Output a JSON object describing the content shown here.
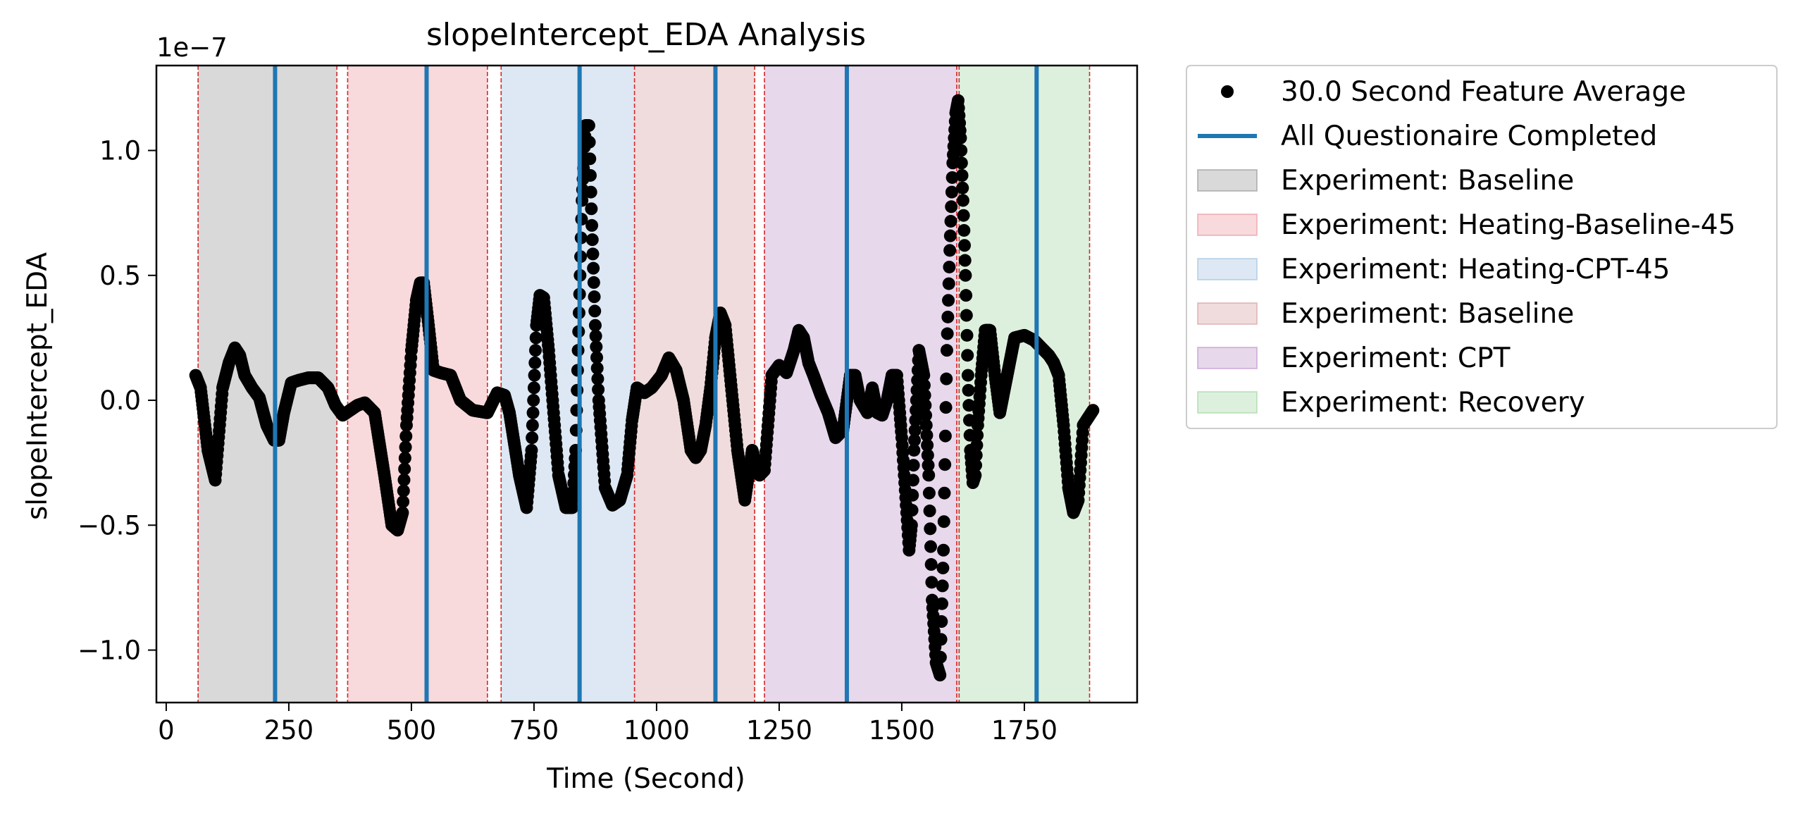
{
  "chart_data": {
    "type": "scatter",
    "title": "slopeIntercept_EDA Analysis",
    "xlabel": "Time (Second)",
    "ylabel": "slopeIntercept_EDA",
    "y_scale_label": "1e−7",
    "xlim": [
      -20,
      1980
    ],
    "ylim": [
      -1.21,
      1.34
    ],
    "x_ticks": [
      0,
      250,
      500,
      750,
      1000,
      1250,
      1500,
      1750
    ],
    "y_ticks": [
      -1.0,
      -0.5,
      0.0,
      0.5,
      1.0
    ],
    "y_tick_labels": [
      "−1.0",
      "−0.5",
      "0.0",
      "0.5",
      "1.0"
    ],
    "legend_position": "outside-right",
    "series": [
      {
        "name": "30.0 Second Feature Average",
        "color": "#000000",
        "marker": "circle",
        "x": [
          60,
          70,
          85,
          100,
          115,
          128,
          140,
          150,
          160,
          175,
          190,
          205,
          220,
          230,
          240,
          255,
          270,
          290,
          310,
          330,
          345,
          360,
          375,
          390,
          405,
          425,
          445,
          460,
          472,
          482,
          490,
          500,
          510,
          518,
          525,
          535,
          545,
          560,
          580,
          600,
          625,
          655,
          675,
          690,
          700,
          720,
          735,
          745,
          755,
          762,
          770,
          780,
          790,
          800,
          815,
          828,
          835,
          840,
          848,
          855,
          862,
          868,
          875,
          882,
          895,
          910,
          925,
          940,
          950,
          960,
          975,
          990,
          1010,
          1025,
          1040,
          1055,
          1070,
          1080,
          1090,
          1100,
          1110,
          1120,
          1130,
          1140,
          1150,
          1165,
          1180,
          1195,
          1210,
          1220,
          1235,
          1250,
          1265,
          1280,
          1290,
          1300,
          1310,
          1320,
          1335,
          1350,
          1365,
          1380,
          1395,
          1405,
          1415,
          1430,
          1440,
          1450,
          1460,
          1470,
          1480,
          1490,
          1500,
          1510,
          1515,
          1520,
          1525,
          1535,
          1545,
          1555,
          1562,
          1570,
          1578,
          1585,
          1592,
          1598,
          1604,
          1610,
          1615,
          1620,
          1625,
          1630,
          1635,
          1640,
          1645,
          1650,
          1655,
          1662,
          1670,
          1680,
          1690,
          1700,
          1715,
          1730,
          1750,
          1770,
          1790,
          1800,
          1810,
          1820,
          1830,
          1840,
          1850,
          1860,
          1870,
          1890
        ],
        "y": [
          0.1,
          0.05,
          -0.2,
          -0.32,
          0.05,
          0.15,
          0.21,
          0.18,
          0.1,
          0.05,
          0.01,
          -0.1,
          -0.16,
          -0.16,
          -0.05,
          0.07,
          0.08,
          0.09,
          0.09,
          0.05,
          -0.02,
          -0.06,
          -0.04,
          -0.02,
          -0.01,
          -0.05,
          -0.3,
          -0.5,
          -0.52,
          -0.45,
          -0.1,
          0.2,
          0.4,
          0.47,
          0.47,
          0.3,
          0.12,
          0.11,
          0.1,
          0.0,
          -0.04,
          -0.05,
          0.03,
          0.02,
          -0.05,
          -0.3,
          -0.43,
          -0.2,
          0.3,
          0.42,
          0.41,
          0.2,
          -0.05,
          -0.3,
          -0.43,
          -0.43,
          -0.2,
          0.2,
          0.8,
          1.1,
          1.1,
          0.7,
          0.3,
          0.0,
          -0.35,
          -0.42,
          -0.4,
          -0.3,
          -0.08,
          0.05,
          0.03,
          0.05,
          0.1,
          0.17,
          0.12,
          0.0,
          -0.2,
          -0.23,
          -0.2,
          -0.1,
          0.05,
          0.25,
          0.35,
          0.3,
          0.1,
          -0.2,
          -0.4,
          -0.2,
          -0.3,
          -0.28,
          0.1,
          0.14,
          0.11,
          0.2,
          0.28,
          0.25,
          0.15,
          0.1,
          0.02,
          -0.05,
          -0.15,
          -0.12,
          0.1,
          0.1,
          0.0,
          -0.05,
          0.05,
          -0.05,
          -0.06,
          0.0,
          0.1,
          0.1,
          -0.15,
          -0.45,
          -0.6,
          -0.5,
          -0.2,
          0.2,
          0.1,
          -0.3,
          -0.8,
          -1.05,
          -1.1,
          -0.6,
          0.2,
          0.6,
          0.95,
          1.15,
          1.2,
          1.05,
          0.8,
          0.5,
          0.1,
          -0.2,
          -0.33,
          -0.3,
          -0.1,
          0.1,
          0.28,
          0.28,
          0.1,
          -0.05,
          0.1,
          0.25,
          0.26,
          0.24,
          0.2,
          0.18,
          0.15,
          0.1,
          -0.1,
          -0.35,
          -0.45,
          -0.4,
          -0.1,
          -0.04
        ]
      },
      {
        "name": "All Questionaire Completed",
        "type": "vline",
        "color": "#1f77b4",
        "x": [
          222,
          531,
          843,
          1120,
          1388,
          1775
        ]
      }
    ],
    "regions": [
      {
        "name": "Experiment: Baseline",
        "x_start": 65,
        "x_end": 348,
        "color": "#808080"
      },
      {
        "name": "Experiment: Heating-Baseline-45",
        "x_start": 370,
        "x_end": 655,
        "color": "#e9818c"
      },
      {
        "name": "Experiment: Heating-CPT-45",
        "x_start": 683,
        "x_end": 955,
        "color": "#8db4d9"
      },
      {
        "name": "Experiment: Baseline",
        "x_start": 955,
        "x_end": 1200,
        "color": "#cc8c8c"
      },
      {
        "name": "Experiment: CPT",
        "x_start": 1220,
        "x_end": 1615,
        "color": "#b07fc0"
      },
      {
        "name": "Experiment: Recovery",
        "x_start": 1615,
        "x_end": 1883,
        "color": "#8fce8f"
      }
    ],
    "region_boundaries": [
      65,
      348,
      370,
      655,
      683,
      955,
      1200,
      1220,
      1612,
      1617,
      1883
    ]
  }
}
